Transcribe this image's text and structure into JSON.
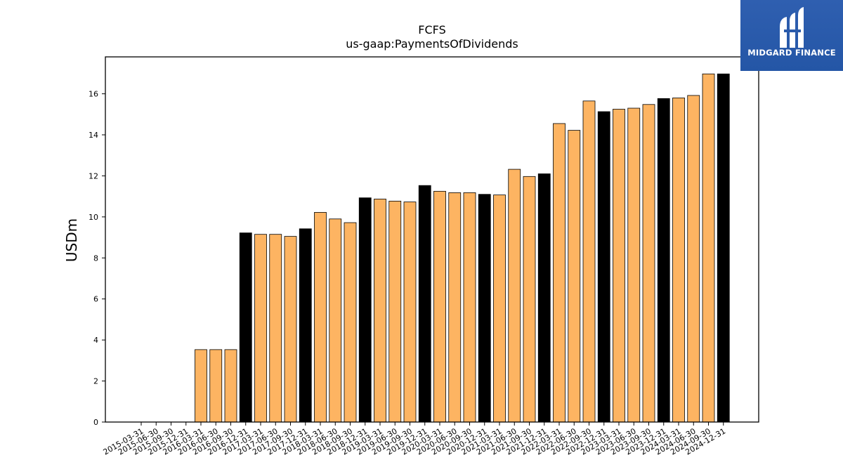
{
  "chart_data": {
    "type": "bar",
    "title": "FCFS",
    "subtitle": "us-gaap:PaymentsOfDividends",
    "xlabel": "",
    "ylabel": "USDm",
    "ylim": [
      0,
      17.8
    ],
    "yticks": [
      0,
      2,
      4,
      6,
      8,
      10,
      12,
      14,
      16
    ],
    "categories": [
      "2015-03-31",
      "2015-06-30",
      "2015-09-30",
      "2015-12-31",
      "2016-03-31",
      "2016-06-30",
      "2016-09-30",
      "2016-12-31",
      "2017-03-31",
      "2017-06-30",
      "2017-09-30",
      "2017-12-31",
      "2018-03-31",
      "2018-06-30",
      "2018-09-30",
      "2018-12-31",
      "2019-03-31",
      "2019-06-30",
      "2019-09-30",
      "2019-12-31",
      "2020-03-31",
      "2020-06-30",
      "2020-09-30",
      "2020-12-31",
      "2021-03-31",
      "2021-06-30",
      "2021-09-30",
      "2021-12-31",
      "2022-03-31",
      "2022-06-30",
      "2022-09-30",
      "2022-12-31",
      "2023-03-31",
      "2023-06-30",
      "2023-09-30",
      "2023-12-31",
      "2024-03-31",
      "2024-06-30",
      "2024-09-30",
      "2024-12-31"
    ],
    "values": [
      0,
      0,
      0,
      0,
      3.53,
      3.53,
      3.53,
      9.22,
      9.15,
      9.15,
      9.05,
      9.42,
      10.22,
      9.9,
      9.72,
      10.93,
      10.87,
      10.77,
      10.73,
      11.53,
      11.25,
      11.18,
      11.18,
      11.1,
      11.07,
      12.32,
      11.97,
      12.1,
      14.55,
      14.22,
      15.65,
      15.13,
      15.25,
      15.3,
      15.48,
      15.77,
      15.8,
      15.92,
      16.97,
      16.97
    ],
    "highlight_quarter": "12-31",
    "colors": {
      "regular": "#fdb462",
      "highlight": "#000000",
      "edge": "#000000"
    },
    "grid": false,
    "legend": "none"
  },
  "logo": {
    "text": "MIDGARD FINANCE",
    "icon": "midgard-logo-icon"
  }
}
